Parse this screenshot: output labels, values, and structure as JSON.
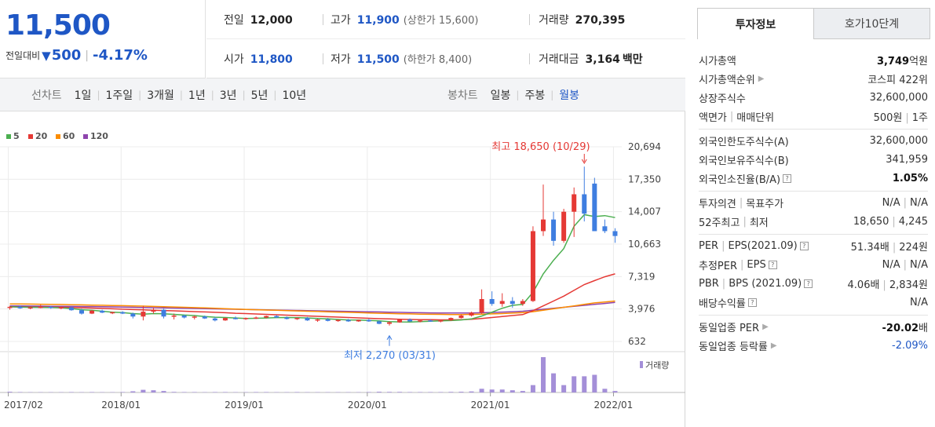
{
  "price": {
    "current": "11,500",
    "change_label": "전일대비",
    "change_value": "500",
    "change_rate": "-4.17%"
  },
  "stats": {
    "prev_close_label": "전일",
    "prev_close": "12,000",
    "high_label": "고가",
    "high": "11,900",
    "upper_limit_label": "(상한가 15,600)",
    "volume_label": "거래량",
    "volume": "270,395",
    "open_label": "시가",
    "open": "11,800",
    "low_label": "저가",
    "low": "11,500",
    "lower_limit_label": "(하한가 8,400)",
    "amount_label": "거래대금",
    "amount": "3,164",
    "amount_unit": "백만"
  },
  "toolbar": {
    "line_label": "선차트",
    "line_opts": [
      "1일",
      "1주일",
      "3개월",
      "1년",
      "3년",
      "5년",
      "10년"
    ],
    "candle_label": "봉차트",
    "candle_opts": [
      "일봉",
      "주봉",
      "월봉"
    ],
    "candle_active": "월봉"
  },
  "tabs": [
    "투자정보",
    "호가10단계"
  ],
  "info": {
    "g1": [
      {
        "label": "시가총액",
        "value_b": "3,749",
        "value": "억원"
      },
      {
        "label": "시가총액순위",
        "arrow": true,
        "value": "코스피 422위"
      },
      {
        "label": "상장주식수",
        "value": "32,600,000"
      },
      {
        "label": "액면가",
        "label2": "매매단위",
        "value": "500원",
        "value2": "1주"
      }
    ],
    "g2": [
      {
        "label": "외국인한도주식수(A)",
        "value": "32,600,000"
      },
      {
        "label": "외국인보유주식수(B)",
        "value": "341,959"
      },
      {
        "label": "외국인소진율(B/A)",
        "q": true,
        "value_b": "1.05%"
      }
    ],
    "g3": [
      {
        "label": "투자의견",
        "label2": "목표주가",
        "value": "N/A",
        "value2": "N/A"
      },
      {
        "label": "52주최고",
        "label2": "최저",
        "value": "18,650",
        "value2": "4,245"
      }
    ],
    "g4": [
      {
        "label": "PER",
        "label2": "EPS(2021.09)",
        "q": true,
        "value": "51.34배",
        "value2": "224원"
      },
      {
        "label": "추정PER",
        "label2": "EPS",
        "q": true,
        "value": "N/A",
        "value2": "N/A"
      },
      {
        "label": "PBR",
        "label2": "BPS (2021.09)",
        "q": true,
        "value": "4.06배",
        "value2": "2,834원"
      },
      {
        "label": "배당수익률",
        "q": true,
        "value": "N/A"
      }
    ],
    "g5": [
      {
        "label": "동일업종 PER",
        "arrow": true,
        "value_b": "-20.02",
        "value": "배"
      },
      {
        "label": "동일업종 등락률",
        "arrow": true,
        "value_blue": "-2.09%"
      }
    ]
  },
  "chart_data": {
    "type": "candlestick",
    "legend": [
      {
        "name": "5",
        "color": "#4caf50"
      },
      {
        "name": "20",
        "color": "#e53935"
      },
      {
        "name": "60",
        "color": "#fb8c00"
      },
      {
        "name": "120",
        "color": "#8e44ad"
      }
    ],
    "colors": {
      "up": "#e53935",
      "down": "#3f7ee0",
      "volume": "#a48fd8"
    },
    "y_ticks": [
      "20,694",
      "17,350",
      "14,007",
      "10,663",
      "7,319",
      "3,976",
      "632"
    ],
    "y_range": [
      632,
      20694
    ],
    "x_ticks": [
      "2017/02",
      "2018/01",
      "2019/01",
      "2020/01",
      "2021/01",
      "2022/01"
    ],
    "x_range": [
      "2017-02",
      "2022-01"
    ],
    "max_label": "최고 18,650 (10/29)",
    "min_label": "최저 2,270 (03/31)",
    "volume_label": "거래량",
    "candles": [
      [
        "2017-02",
        4100,
        4300,
        3900,
        4200
      ],
      [
        "2017-03",
        4200,
        4350,
        4000,
        4050
      ],
      [
        "2017-04",
        4050,
        4250,
        3950,
        4150
      ],
      [
        "2017-05",
        4150,
        4400,
        4050,
        4200
      ],
      [
        "2017-06",
        4200,
        4300,
        4000,
        4100
      ],
      [
        "2017-07",
        4100,
        4200,
        3950,
        4150
      ],
      [
        "2017-08",
        4150,
        4200,
        3800,
        3850
      ],
      [
        "2017-09",
        3850,
        4000,
        3400,
        3500
      ],
      [
        "2017-10",
        3500,
        3900,
        3450,
        3800
      ],
      [
        "2017-11",
        3800,
        3900,
        3550,
        3600
      ],
      [
        "2017-12",
        3600,
        3700,
        3450,
        3650
      ],
      [
        "2018-01",
        3650,
        3750,
        3450,
        3500
      ],
      [
        "2018-02",
        3500,
        3600,
        3000,
        3200
      ],
      [
        "2018-03",
        3200,
        4300,
        2800,
        3700
      ],
      [
        "2018-04",
        3700,
        4100,
        3500,
        3900
      ],
      [
        "2018-05",
        3900,
        4000,
        3000,
        3200
      ],
      [
        "2018-06",
        3200,
        3500,
        2900,
        3300
      ],
      [
        "2018-07",
        3300,
        3400,
        3000,
        3100
      ],
      [
        "2018-08",
        3100,
        3300,
        2900,
        3200
      ],
      [
        "2018-09",
        3200,
        3300,
        2950,
        3000
      ],
      [
        "2018-10",
        3000,
        3150,
        2700,
        2800
      ],
      [
        "2018-11",
        2800,
        3100,
        2750,
        3050
      ],
      [
        "2018-12",
        3050,
        3200,
        2900,
        2950
      ],
      [
        "2019-01",
        2950,
        3100,
        2850,
        3050
      ],
      [
        "2019-02",
        3050,
        3200,
        2950,
        3100
      ],
      [
        "2019-03",
        3100,
        3300,
        3000,
        3250
      ],
      [
        "2019-04",
        3250,
        3350,
        3050,
        3100
      ],
      [
        "2019-05",
        3100,
        3200,
        2900,
        2950
      ],
      [
        "2019-06",
        2950,
        3100,
        2850,
        3050
      ],
      [
        "2019-07",
        3050,
        3150,
        2750,
        2800
      ],
      [
        "2019-08",
        2800,
        2950,
        2650,
        2900
      ],
      [
        "2019-09",
        2900,
        3050,
        2700,
        2750
      ],
      [
        "2019-10",
        2750,
        2900,
        2650,
        2850
      ],
      [
        "2019-11",
        2850,
        2950,
        2650,
        2700
      ],
      [
        "2019-12",
        2700,
        2900,
        2650,
        2850
      ],
      [
        "2020-01",
        2850,
        2950,
        2650,
        2700
      ],
      [
        "2020-02",
        2700,
        2800,
        2400,
        2450
      ],
      [
        "2020-03",
        2450,
        2700,
        2270,
        2600
      ],
      [
        "2020-04",
        2600,
        2950,
        2550,
        2900
      ],
      [
        "2020-05",
        2900,
        3000,
        2650,
        2700
      ],
      [
        "2020-06",
        2700,
        2850,
        2600,
        2800
      ],
      [
        "2020-07",
        2800,
        2900,
        2650,
        2700
      ],
      [
        "2020-08",
        2700,
        2850,
        2600,
        2800
      ],
      [
        "2020-09",
        2800,
        3100,
        2750,
        3050
      ],
      [
        "2020-10",
        3050,
        3400,
        3000,
        3300
      ],
      [
        "2020-11",
        3300,
        3700,
        3200,
        3600
      ],
      [
        "2020-12",
        3600,
        6000,
        3500,
        5000
      ],
      [
        "2021-01",
        5000,
        5800,
        4300,
        4500
      ],
      [
        "2021-02",
        4500,
        5600,
        4200,
        4800
      ],
      [
        "2021-03",
        4800,
        5200,
        4100,
        4500
      ],
      [
        "2021-04",
        4500,
        5000,
        4300,
        4800
      ],
      [
        "2021-05",
        4800,
        12500,
        4700,
        12000
      ],
      [
        "2021-06",
        12000,
        16800,
        11500,
        13200
      ],
      [
        "2021-07",
        13200,
        14000,
        10500,
        11000
      ],
      [
        "2021-08",
        11000,
        14300,
        10800,
        14000
      ],
      [
        "2021-09",
        14000,
        16500,
        11400,
        15800
      ],
      [
        "2021-10",
        15800,
        18650,
        13000,
        13800
      ],
      [
        "2021-11",
        16900,
        17500,
        12000,
        12000
      ],
      [
        "2021-12",
        12500,
        13200,
        11800,
        12000
      ],
      [
        "2022-01",
        12000,
        12300,
        10800,
        11500
      ]
    ],
    "ma5": [
      4200,
      4170,
      4150,
      4140,
      4130,
      4100,
      4020,
      3900,
      3850,
      3750,
      3650,
      3600,
      3500,
      3450,
      3500,
      3480,
      3420,
      3350,
      3300,
      3200,
      3130,
      3100,
      3050,
      3000,
      3020,
      3050,
      3090,
      3100,
      3080,
      3050,
      3000,
      2950,
      2900,
      2850,
      2830,
      2800,
      2750,
      2680,
      2650,
      2640,
      2680,
      2720,
      2750,
      2780,
      2850,
      2950,
      3250,
      3650,
      4050,
      4350,
      4450,
      5700,
      7600,
      9000,
      10200,
      12500,
      13700,
      13500,
      13600,
      13400
    ],
    "ma20": [
      4200,
      4190,
      4180,
      4170,
      4160,
      4150,
      4130,
      4100,
      4070,
      4040,
      4000,
      3960,
      3920,
      3880,
      3850,
      3820,
      3790,
      3750,
      3710,
      3670,
      3630,
      3590,
      3540,
      3500,
      3460,
      3420,
      3380,
      3340,
      3300,
      3260,
      3220,
      3180,
      3140,
      3100,
      3060,
      3020,
      2980,
      2950,
      2920,
      2900,
      2880,
      2870,
      2860,
      2860,
      2880,
      2910,
      3000,
      3100,
      3200,
      3300,
      3400,
      3800,
      4300,
      4800,
      5300,
      5900,
      6500,
      6900,
      7300,
      7600
    ],
    "ma60": [
      4500,
      4490,
      4480,
      4470,
      4460,
      4440,
      4420,
      4400,
      4380,
      4360,
      4340,
      4320,
      4300,
      4270,
      4240,
      4210,
      4180,
      4150,
      4120,
      4090,
      4050,
      4010,
      3970,
      3930,
      3900,
      3870,
      3840,
      3810,
      3780,
      3750,
      3720,
      3690,
      3660,
      3630,
      3600,
      3570,
      3540,
      3510,
      3490,
      3470,
      3450,
      3430,
      3420,
      3410,
      3410,
      3420,
      3440,
      3470,
      3500,
      3550,
      3600,
      3700,
      3850,
      4000,
      4150,
      4300,
      4450,
      4600,
      4700,
      4800
    ],
    "ma120": [
      4300,
      4290,
      4280,
      4270,
      4260,
      4250,
      4240,
      4230,
      4220,
      4210,
      4190,
      4170,
      4150,
      4130,
      4110,
      4090,
      4070,
      4050,
      4030,
      4010,
      3990,
      3970,
      3950,
      3930,
      3910,
      3890,
      3870,
      3850,
      3830,
      3810,
      3790,
      3770,
      3750,
      3730,
      3710,
      3690,
      3670,
      3650,
      3630,
      3610,
      3590,
      3580,
      3570,
      3560,
      3560,
      3570,
      3590,
      3620,
      3660,
      3700,
      3750,
      3850,
      3950,
      4050,
      4150,
      4250,
      4350,
      4450,
      4550,
      4650
    ],
    "volume": [
      0.5,
      0.3,
      0.2,
      0.2,
      0.2,
      0.2,
      0.3,
      0.2,
      0.3,
      0.2,
      0.2,
      0.3,
      0.8,
      1.8,
      1.5,
      1.0,
      0.4,
      0.3,
      0.3,
      0.2,
      0.3,
      0.3,
      0.2,
      0.2,
      0.3,
      0.3,
      0.2,
      0.2,
      0.3,
      0.2,
      0.2,
      0.2,
      0.2,
      0.2,
      0.2,
      0.3,
      0.5,
      0.4,
      0.4,
      0.3,
      0.3,
      0.3,
      0.3,
      0.4,
      0.5,
      0.7,
      2.5,
      2.0,
      2.0,
      1.5,
      1.0,
      5.0,
      24,
      13,
      5,
      11,
      11,
      12,
      2.5,
      1.0
    ]
  }
}
